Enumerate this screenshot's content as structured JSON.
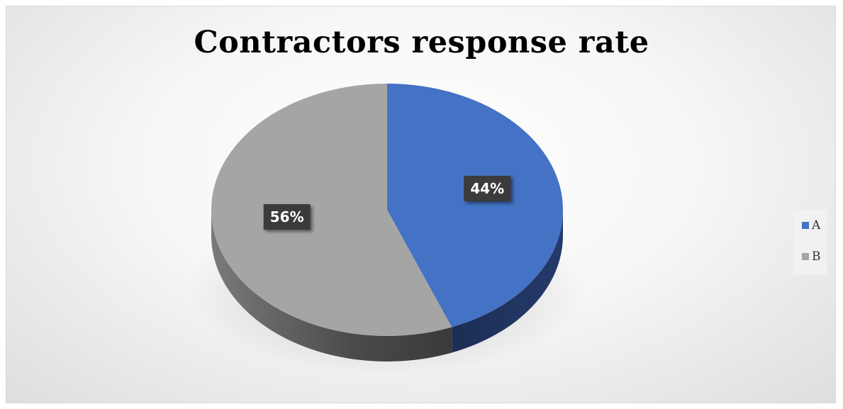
{
  "chart_data": {
    "type": "pie",
    "title": "Contractors response rate",
    "categories": [
      "A",
      "B"
    ],
    "values": [
      44,
      56
    ],
    "data_labels": [
      "44%",
      "56%"
    ],
    "colors": [
      "#4472C4",
      "#A5A5A5"
    ],
    "legend_position": "right",
    "style": "3d"
  }
}
